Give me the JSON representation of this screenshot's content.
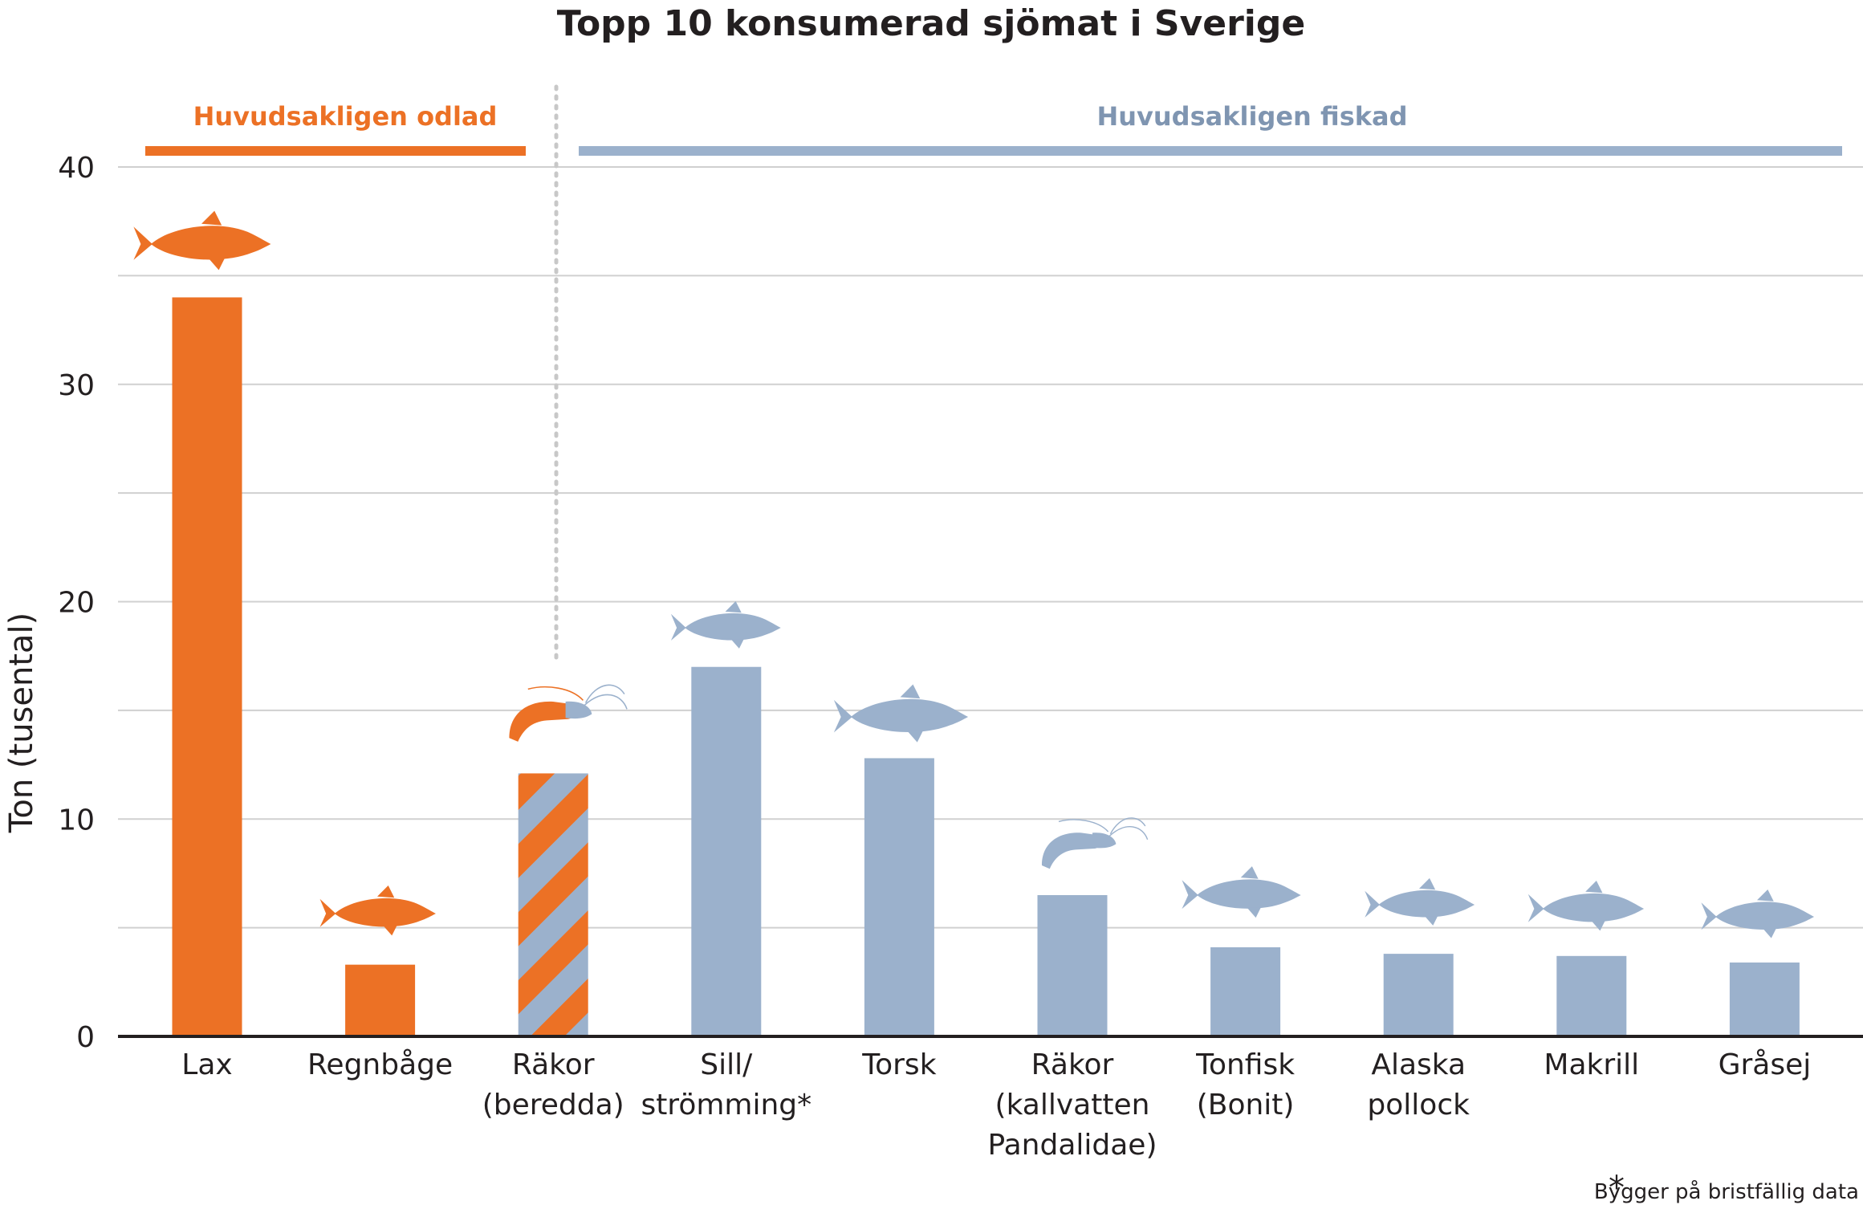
{
  "colors": {
    "farmed": "#ec7125",
    "wild": "#9bb1cc",
    "axis": "#231f20",
    "grid": "#d0d0d0",
    "divider": "#c8c8c8"
  },
  "icons": [
    "salmon-icon",
    "trout-icon",
    "shrimp-icon",
    "herring-icon",
    "cod-icon",
    "shrimp-icon",
    "tuna-icon",
    "pollock-icon",
    "mackerel-icon",
    "saithe-icon"
  ],
  "groups": {
    "farmed_label": "Huvudsakligen odlad",
    "wild_label": "Huvudsakligen fiskad"
  },
  "footnote": {
    "star": "*",
    "text": "Bygger på bristfällig data"
  },
  "chart_data": {
    "type": "bar",
    "title": "Topp 10 konsumerad sjömat i Sverige",
    "xlabel": "",
    "ylabel": "Ton (tusental)",
    "ylim": [
      0,
      40
    ],
    "yticks": [
      0,
      10,
      20,
      30,
      40
    ],
    "grid": true,
    "categories": [
      [
        "Lax"
      ],
      [
        "Regnbåge"
      ],
      [
        "Räkor",
        "(beredda)"
      ],
      [
        "Sill/",
        "strömming*"
      ],
      [
        "Torsk"
      ],
      [
        "Räkor",
        "(kallvatten",
        "Pandalidae)"
      ],
      [
        "Tonfisk",
        "(Bonit)"
      ],
      [
        "Alaska",
        "pollock"
      ],
      [
        "Makrill"
      ],
      [
        "Gråsej"
      ]
    ],
    "values": [
      34.0,
      3.3,
      12.1,
      17.0,
      12.8,
      6.5,
      4.1,
      3.8,
      3.7,
      3.4
    ],
    "group": [
      "farmed",
      "farmed",
      "mixed",
      "wild",
      "wild",
      "wild",
      "wild",
      "wild",
      "wild",
      "wild"
    ]
  }
}
